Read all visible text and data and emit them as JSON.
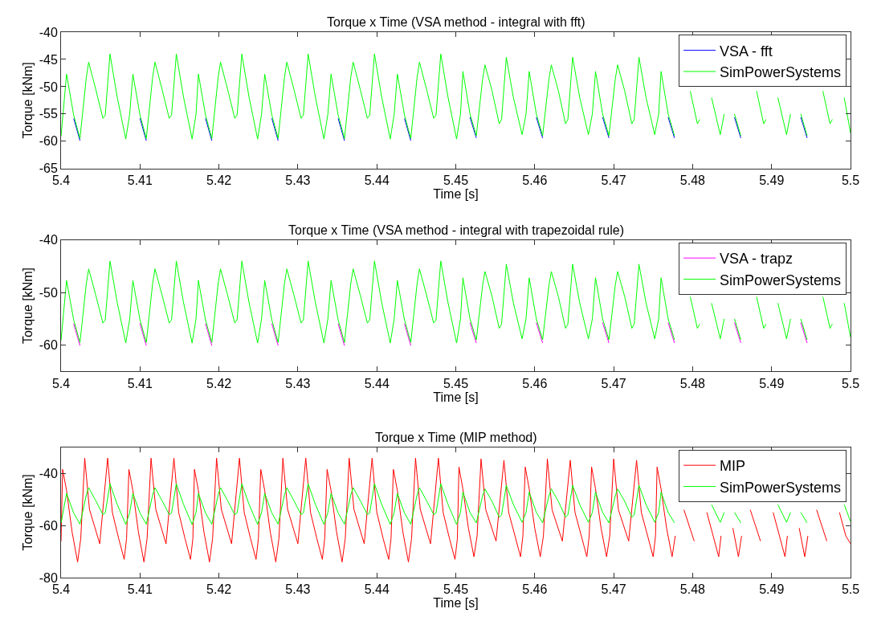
{
  "chart_data": [
    {
      "type": "line",
      "title": "Torque x Time (VSA method - integral with fft)",
      "xlabel": "Time [s]",
      "ylabel": "Torque [kNm]",
      "x": [
        5.4,
        5.4007,
        5.4016,
        5.4024,
        5.4032,
        5.4035,
        5.4044,
        5.4053,
        5.4056,
        5.4062,
        5.4071,
        5.4082,
        5.4087,
        5.4091,
        5.41,
        5.4108,
        5.4116,
        5.4119,
        5.4128,
        5.4137,
        5.414,
        5.4146,
        5.4155,
        5.4166,
        5.4171,
        5.4174,
        5.4183,
        5.4191,
        5.4199,
        5.4202,
        5.4211,
        5.422,
        5.4223,
        5.4229,
        5.4238,
        5.4249,
        5.4254,
        5.4258,
        5.4267,
        5.4275,
        5.4283,
        5.4286,
        5.4295,
        5.4304,
        5.4307,
        5.4313,
        5.4322,
        5.4333,
        5.4338,
        5.4342,
        5.4351,
        5.4359,
        5.4367,
        5.437,
        5.4379,
        5.4388,
        5.4391,
        5.4397,
        5.4406,
        5.4417,
        5.4422,
        5.4426,
        5.4435,
        5.4443,
        5.4451,
        5.4454,
        5.4463,
        5.4472,
        5.4475,
        5.4481,
        5.449,
        5.4501,
        5.4506,
        5.4509,
        5.4518,
        5.4526,
        5.4534,
        5.4537,
        5.4546,
        5.4555,
        5.4558,
        5.4564,
        5.4573,
        5.4584,
        5.4589,
        5.4593,
        5.4602,
        5.461,
        5.4618,
        5.4621,
        5.463,
        5.4639,
        5.4642,
        5.4648,
        5.4657,
        5.4668,
        5.4673,
        5.4677,
        5.4686,
        5.4694,
        5.4702,
        5.4705,
        5.4714,
        5.4723,
        5.4726,
        5.4732,
        5.4741,
        5.4752,
        5.4757,
        5.476,
        5.4769,
        5.4777,
        5.4785,
        5.4788,
        5.4797,
        5.4806,
        5.4809,
        5.4815,
        5.4824,
        5.4835,
        5.484,
        5.4844,
        5.4853,
        5.4861,
        5.4869,
        5.4872,
        5.4881,
        5.489,
        5.4893,
        5.4899,
        5.4908,
        5.4919,
        5.4924,
        5.4928,
        5.4937,
        5.4945,
        5.4953,
        5.4956,
        5.4965,
        5.4974,
        5.4977,
        5.4983,
        5.4992,
        5.5
      ],
      "series": [
        {
          "name": "VSA - fft",
          "color": "#0000ff",
          "values": [
            null,
            null,
            -55.8,
            -59.9,
            null,
            null,
            null,
            null,
            null,
            null,
            null,
            null,
            null,
            null,
            -55.8,
            -59.9,
            null,
            null,
            null,
            null,
            null,
            null,
            null,
            null,
            null,
            null,
            -55.8,
            -59.9,
            null,
            null,
            null,
            null,
            null,
            null,
            null,
            null,
            null,
            null,
            -55.8,
            -59.9,
            null,
            null,
            null,
            null,
            null,
            null,
            null,
            null,
            null,
            null,
            -55.8,
            -59.9,
            null,
            null,
            null,
            null,
            null,
            null,
            null,
            null,
            null,
            null,
            -55.8,
            -59.9,
            null,
            null,
            null,
            null,
            null,
            null,
            null,
            null,
            null,
            null,
            -55.6,
            -59.4,
            null,
            null,
            null,
            null,
            null,
            null,
            null,
            null,
            null,
            null,
            -55.6,
            -59.4,
            null,
            null,
            null,
            null,
            null,
            null,
            null,
            null,
            null,
            null,
            -55.6,
            -59.4,
            null,
            null,
            null,
            null,
            null,
            null,
            null,
            null,
            null,
            null,
            -55.6,
            -59.4,
            null,
            null,
            null,
            null,
            null,
            null,
            null,
            null,
            null,
            null,
            -55.6,
            -59.4,
            null,
            null,
            null,
            null,
            null,
            null,
            null,
            null,
            null,
            null,
            -55.6,
            -59.4,
            null,
            null,
            null,
            null,
            null,
            null,
            null,
            null
          ]
        },
        {
          "name": "SimPowerSystems",
          "color": "#00ff00",
          "values": [
            -59.1,
            -47.7,
            -55.2,
            -59.5,
            -48.3,
            -45.5,
            -50.5,
            -55.8,
            -55.2,
            -44.0,
            -51.8,
            -59.6,
            -55.0,
            -47.7,
            -55.2,
            -59.5,
            -48.3,
            -45.5,
            -50.5,
            -55.8,
            -55.2,
            -44.0,
            -51.8,
            -59.6,
            -55.0,
            -47.7,
            -55.2,
            -59.5,
            -48.3,
            -45.5,
            -50.5,
            -55.8,
            -55.2,
            -44.0,
            -51.8,
            -59.6,
            -55.0,
            -47.7,
            -55.2,
            -59.5,
            -48.3,
            -45.5,
            -50.5,
            -55.8,
            -55.2,
            -44.0,
            -51.8,
            -59.6,
            -55.0,
            -47.7,
            -55.2,
            -59.5,
            -48.3,
            -45.5,
            -50.5,
            -55.8,
            -55.2,
            -44.0,
            -51.8,
            -59.6,
            -55.0,
            -47.7,
            -55.2,
            -59.5,
            -48.3,
            -45.5,
            -50.5,
            -55.8,
            -55.2,
            -44.0,
            -51.8,
            -59.6,
            -55.0,
            -47.2,
            -55.0,
            -59.0,
            -48.6,
            -46.0,
            -50.8,
            -56.8,
            -56.0,
            -44.6,
            -52.0,
            -58.8,
            -55.0,
            -47.2,
            -55.0,
            -59.0,
            -48.6,
            -46.0,
            -50.8,
            -56.8,
            -56.0,
            -44.6,
            -52.0,
            -58.8,
            -55.0,
            -47.2,
            -55.0,
            -59.0,
            -48.6,
            -46.0,
            -50.8,
            -56.8,
            -56.0,
            -44.6,
            -52.0,
            -58.8,
            -55.0,
            -47.2,
            -55.0,
            -59.0,
            null,
            null,
            -50.8,
            -56.8,
            -56.0,
            null,
            -52.0,
            -58.8,
            -55.0,
            null,
            -55.0,
            -59.0,
            null,
            null,
            -50.8,
            -56.8,
            -56.0,
            null,
            -52.0,
            -58.8,
            -55.0,
            null,
            -55.0,
            -59.0,
            null,
            null,
            -50.8,
            -56.8,
            -56.0,
            null,
            -52.0,
            -58.5
          ]
        }
      ],
      "xlim": [
        5.4,
        5.5
      ],
      "xticks": [
        5.4,
        5.41,
        5.42,
        5.43,
        5.44,
        5.45,
        5.46,
        5.47,
        5.48,
        5.49,
        5.5
      ],
      "ylim": [
        -65,
        -40
      ],
      "yticks": [
        -65,
        -60,
        -55,
        -50,
        -45,
        -40
      ],
      "legend": "top right",
      "line_style": "solid"
    },
    {
      "type": "line",
      "title": "Torque x Time (VSA method - integral with trapezoidal rule)",
      "xlabel": "Time [s]",
      "ylabel": "Torque [kNm]",
      "x": [
        5.4,
        5.4007,
        5.4016,
        5.4024,
        5.4032,
        5.4035,
        5.4044,
        5.4053,
        5.4056,
        5.4062,
        5.4071,
        5.4082,
        5.4087,
        5.4091,
        5.41,
        5.4108,
        5.4116,
        5.4119,
        5.4128,
        5.4137,
        5.414,
        5.4146,
        5.4155,
        5.4166,
        5.4171,
        5.4174,
        5.4183,
        5.4191,
        5.4199,
        5.4202,
        5.4211,
        5.422,
        5.4223,
        5.4229,
        5.4238,
        5.4249,
        5.4254,
        5.4258,
        5.4267,
        5.4275,
        5.4283,
        5.4286,
        5.4295,
        5.4304,
        5.4307,
        5.4313,
        5.4322,
        5.4333,
        5.4338,
        5.4342,
        5.4351,
        5.4359,
        5.4367,
        5.437,
        5.4379,
        5.4388,
        5.4391,
        5.4397,
        5.4406,
        5.4417,
        5.4422,
        5.4426,
        5.4435,
        5.4443,
        5.4451,
        5.4454,
        5.4463,
        5.4472,
        5.4475,
        5.4481,
        5.449,
        5.4501,
        5.4506,
        5.4509,
        5.4518,
        5.4526,
        5.4534,
        5.4537,
        5.4546,
        5.4555,
        5.4558,
        5.4564,
        5.4573,
        5.4584,
        5.4589,
        5.4593,
        5.4602,
        5.461,
        5.4618,
        5.4621,
        5.463,
        5.4639,
        5.4642,
        5.4648,
        5.4657,
        5.4668,
        5.4673,
        5.4677,
        5.4686,
        5.4694,
        5.4702,
        5.4705,
        5.4714,
        5.4723,
        5.4726,
        5.4732,
        5.4741,
        5.4752,
        5.4757,
        5.476,
        5.4769,
        5.4777,
        5.4785,
        5.4788,
        5.4797,
        5.4806,
        5.4809,
        5.4815,
        5.4824,
        5.4835,
        5.484,
        5.4844,
        5.4853,
        5.4861,
        5.4869,
        5.4872,
        5.4881,
        5.489,
        5.4893,
        5.4899,
        5.4908,
        5.4919,
        5.4924,
        5.4928,
        5.4937,
        5.4945,
        5.4953,
        5.4956,
        5.4965,
        5.4974,
        5.4977,
        5.4983,
        5.4992,
        5.5
      ],
      "series": [
        {
          "name": "VSA - trapz",
          "color": "#ff00ff",
          "values": [
            null,
            null,
            -55.9,
            -60.1,
            null,
            null,
            null,
            null,
            null,
            null,
            null,
            null,
            null,
            null,
            -55.9,
            -60.1,
            null,
            null,
            null,
            null,
            null,
            null,
            null,
            null,
            null,
            null,
            -55.9,
            -60.1,
            null,
            null,
            null,
            null,
            null,
            null,
            null,
            null,
            null,
            null,
            -55.9,
            -60.1,
            null,
            null,
            null,
            null,
            null,
            null,
            null,
            null,
            null,
            null,
            -55.9,
            -60.1,
            null,
            null,
            null,
            null,
            null,
            null,
            null,
            null,
            null,
            null,
            -55.9,
            -60.1,
            null,
            null,
            null,
            null,
            null,
            null,
            null,
            null,
            null,
            null,
            -55.7,
            -59.6,
            null,
            null,
            null,
            null,
            null,
            null,
            null,
            null,
            null,
            null,
            -55.7,
            -59.6,
            null,
            null,
            null,
            null,
            null,
            null,
            null,
            null,
            null,
            null,
            -55.7,
            -59.6,
            null,
            null,
            null,
            null,
            null,
            null,
            null,
            null,
            null,
            null,
            -55.7,
            -59.6,
            null,
            null,
            null,
            null,
            null,
            null,
            null,
            null,
            null,
            null,
            -55.7,
            -59.6,
            null,
            null,
            null,
            null,
            null,
            null,
            null,
            null,
            null,
            null,
            -55.7,
            -59.6,
            null,
            null,
            null,
            null,
            null,
            null,
            null,
            null
          ]
        },
        {
          "name": "SimPowerSystems",
          "color": "#00ff00",
          "values": [
            -59.1,
            -47.7,
            -55.2,
            -59.5,
            -48.3,
            -45.5,
            -50.5,
            -55.8,
            -55.2,
            -44.0,
            -51.8,
            -59.6,
            -55.0,
            -47.7,
            -55.2,
            -59.5,
            -48.3,
            -45.5,
            -50.5,
            -55.8,
            -55.2,
            -44.0,
            -51.8,
            -59.6,
            -55.0,
            -47.7,
            -55.2,
            -59.5,
            -48.3,
            -45.5,
            -50.5,
            -55.8,
            -55.2,
            -44.0,
            -51.8,
            -59.6,
            -55.0,
            -47.7,
            -55.2,
            -59.5,
            -48.3,
            -45.5,
            -50.5,
            -55.8,
            -55.2,
            -44.0,
            -51.8,
            -59.6,
            -55.0,
            -47.7,
            -55.2,
            -59.5,
            -48.3,
            -45.5,
            -50.5,
            -55.8,
            -55.2,
            -44.0,
            -51.8,
            -59.6,
            -55.0,
            -47.7,
            -55.2,
            -59.5,
            -48.3,
            -45.5,
            -50.5,
            -55.8,
            -55.2,
            -44.0,
            -51.8,
            -59.6,
            -55.0,
            -47.2,
            -55.0,
            -59.0,
            -48.6,
            -46.0,
            -50.8,
            -56.8,
            -56.0,
            -44.6,
            -52.0,
            -58.8,
            -55.0,
            -47.2,
            -55.0,
            -59.0,
            -48.6,
            -46.0,
            -50.8,
            -56.8,
            -56.0,
            -44.6,
            -52.0,
            -58.8,
            -55.0,
            -47.2,
            -55.0,
            -59.0,
            -48.6,
            -46.0,
            -50.8,
            -56.8,
            -56.0,
            -44.6,
            -52.0,
            -58.8,
            -55.0,
            -47.2,
            -55.0,
            -59.0,
            null,
            null,
            -50.8,
            -56.8,
            -56.0,
            null,
            -52.0,
            -58.8,
            -55.0,
            null,
            -55.0,
            -59.0,
            null,
            null,
            -50.8,
            -56.8,
            -56.0,
            null,
            -52.0,
            -58.8,
            -55.0,
            null,
            -55.0,
            -59.0,
            null,
            null,
            -50.8,
            -56.8,
            -56.0,
            null,
            -52.0,
            -58.5
          ]
        }
      ],
      "xlim": [
        5.4,
        5.5
      ],
      "xticks": [
        5.4,
        5.41,
        5.42,
        5.43,
        5.44,
        5.45,
        5.46,
        5.47,
        5.48,
        5.49,
        5.5
      ],
      "ylim": [
        -65,
        -40
      ],
      "yticks": [
        -60,
        -50,
        -40
      ],
      "legend": "top right",
      "line_style": "solid"
    },
    {
      "type": "line",
      "title": "Torque x Time (MIP method)",
      "xlabel": "Time [s]",
      "ylabel": "Torque [kNm]",
      "x": [
        5.4,
        5.4007,
        5.4016,
        5.4024,
        5.4032,
        5.4035,
        5.4044,
        5.4053,
        5.4056,
        5.4062,
        5.4071,
        5.4082,
        5.4087,
        5.4091,
        5.41,
        5.4108,
        5.4116,
        5.4119,
        5.4128,
        5.4137,
        5.414,
        5.4146,
        5.4155,
        5.4166,
        5.4171,
        5.4174,
        5.4183,
        5.4191,
        5.4199,
        5.4202,
        5.4211,
        5.422,
        5.4223,
        5.4229,
        5.4238,
        5.4249,
        5.4254,
        5.4258,
        5.4267,
        5.4275,
        5.4283,
        5.4286,
        5.4295,
        5.4304,
        5.4307,
        5.4313,
        5.4322,
        5.4333,
        5.4338,
        5.4342,
        5.4351,
        5.4359,
        5.4367,
        5.437,
        5.4379,
        5.4388,
        5.4391,
        5.4397,
        5.4406,
        5.4417,
        5.4422,
        5.4426,
        5.4435,
        5.4443,
        5.4451,
        5.4454,
        5.4463,
        5.4472,
        5.4475,
        5.4481,
        5.449,
        5.4501,
        5.4506,
        5.4509,
        5.4518,
        5.4526,
        5.4534,
        5.4537,
        5.4546,
        5.4555,
        5.4558,
        5.4564,
        5.4573,
        5.4584,
        5.4589,
        5.4593,
        5.4602,
        5.461,
        5.4618,
        5.4621,
        5.463,
        5.4639,
        5.4642,
        5.4648,
        5.4657,
        5.4668,
        5.4673,
        5.4677,
        5.4686,
        5.4694,
        5.4702,
        5.4705,
        5.4714,
        5.4723,
        5.4726,
        5.4732,
        5.4741,
        5.4752,
        5.4757,
        5.476,
        5.4769,
        5.4777,
        5.4785,
        5.4788,
        5.4797,
        5.4806,
        5.4809,
        5.4815,
        5.4824,
        5.4835,
        5.484,
        5.4844,
        5.4853,
        5.4861,
        5.4869,
        5.4872,
        5.4881,
        5.489,
        5.4893,
        5.4899,
        5.4908,
        5.4919,
        5.4924,
        5.4928,
        5.4937,
        5.4945,
        5.4953,
        5.4956,
        5.4965,
        5.4974,
        5.4977,
        5.4983,
        5.4992,
        5.5
      ],
      "series": [
        {
          "name": "MIP",
          "color": "#ff0000",
          "x": [
            5.4,
            5.4002,
            5.4007,
            5.4014,
            5.4021,
            5.4025,
            5.403,
            5.4036,
            5.4049,
            5.4059,
            5.4065,
            5.4073,
            5.408,
            5.4083,
            5.4086,
            5.4091,
            5.4098,
            5.4105,
            5.4109,
            5.4114,
            5.412,
            5.4133,
            5.4143,
            5.4149,
            5.4157,
            5.4164,
            5.4167,
            5.4169,
            5.4174,
            5.4181,
            5.4188,
            5.4192,
            5.4197,
            5.4203,
            5.4216,
            5.4226,
            5.4232,
            5.424,
            5.4247,
            5.425,
            5.4253,
            5.4258,
            5.4265,
            5.4272,
            5.4276,
            5.4281,
            5.4287,
            5.43,
            5.431,
            5.4316,
            5.4324,
            5.4331,
            5.4334,
            5.4337,
            5.4342,
            5.4349,
            5.4356,
            5.436,
            5.4365,
            5.4371,
            5.4384,
            5.4394,
            5.44,
            5.4408,
            5.4415,
            5.4418,
            5.4421,
            5.4426,
            5.4433,
            5.444,
            5.4444,
            5.4449,
            5.4455,
            5.4468,
            5.4478,
            5.4484,
            5.4492,
            5.4499,
            5.4502,
            5.4504,
            5.4509,
            5.4516,
            5.4523,
            5.4527,
            5.4532,
            5.4538,
            5.4551,
            5.4561,
            5.4567,
            5.4575,
            5.4582,
            5.4585,
            5.4588,
            5.4593,
            5.46,
            5.4607,
            5.4611,
            5.4616,
            5.4622,
            5.4635,
            5.4645,
            5.4651,
            5.4659,
            5.4666,
            5.4669,
            5.4672,
            5.4677,
            5.4684,
            5.4691,
            5.4695,
            5.47,
            5.4706,
            5.4719,
            5.4729,
            5.4735,
            5.4743,
            5.475,
            5.4753,
            5.4755,
            5.476,
            5.4767,
            5.4774,
            5.4778,
            5.4783,
            5.4789,
            5.4802,
            5.4812,
            5.4818,
            5.4826,
            5.4833,
            5.4836,
            5.4839,
            5.4844,
            5.4851,
            5.4858,
            5.4862,
            5.4867,
            5.4873,
            5.4886,
            5.4896,
            5.4902,
            5.491,
            5.4917,
            5.492,
            5.4923,
            5.4928,
            5.4935,
            5.4942,
            5.4946,
            5.4951,
            5.4957,
            5.497,
            5.498,
            5.4986,
            5.4994,
            5.5
          ],
          "values": [
            -66,
            -38.5,
            -46.6,
            -62.5,
            -74,
            -65,
            -34.2,
            -53.8,
            -67,
            -34.2,
            -55,
            -65,
            -73,
            -65,
            -38.5,
            -46.6,
            -62.5,
            -74,
            -65,
            -34.2,
            -53.8,
            -67,
            -34.2,
            -55,
            -65,
            -73,
            -65,
            -38.5,
            -46.6,
            -62.5,
            -74,
            -65,
            -34.2,
            -53.8,
            -67,
            -34.2,
            -55,
            -65,
            -73,
            -65,
            -38.5,
            -46.6,
            -62.5,
            -74,
            -65,
            -34.2,
            -53.8,
            -67,
            -34.2,
            -55,
            -65,
            -73,
            -65,
            -38.5,
            -46.6,
            -62.5,
            -74,
            -65,
            -34.2,
            -53.8,
            -67,
            -34.2,
            -55,
            -65,
            -73,
            -65,
            -38.5,
            -46.6,
            -62.5,
            -74,
            -65,
            -34.2,
            -53.8,
            -67,
            -34.2,
            -55,
            -65,
            -73,
            -65,
            -37.6,
            -46,
            -61,
            -72,
            -64,
            -34.5,
            -54,
            -66,
            -35,
            -55,
            -64,
            -72,
            -64,
            -37.6,
            -46,
            -61,
            -72,
            -64,
            -34.5,
            -54,
            -66,
            -35,
            -55,
            -64,
            -72,
            -64,
            -37.6,
            -46,
            -61,
            -72,
            -64,
            -34.5,
            -54,
            -66,
            -35,
            -55,
            -64,
            -72,
            -64,
            -37.6,
            -46,
            -61,
            -72,
            -64,
            null,
            -54,
            -66,
            null,
            -55,
            -64,
            -72,
            -64,
            null,
            null,
            -61,
            -72,
            -64,
            null,
            -54,
            -66,
            null,
            -55,
            -64,
            -72,
            -64,
            null,
            null,
            -61,
            -72,
            -64,
            null,
            -54,
            -66,
            null,
            -55,
            -64,
            -67
          ]
        },
        {
          "name": "SimPowerSystems",
          "color": "#00ff00",
          "values": [
            -59.1,
            -47.7,
            -55.2,
            -59.5,
            -48.3,
            -45.5,
            -50.5,
            -55.8,
            -55.2,
            -44.0,
            -51.8,
            -59.6,
            -55.0,
            -47.7,
            -55.2,
            -59.5,
            -48.3,
            -45.5,
            -50.5,
            -55.8,
            -55.2,
            -44.0,
            -51.8,
            -59.6,
            -55.0,
            -47.7,
            -55.2,
            -59.5,
            -48.3,
            -45.5,
            -50.5,
            -55.8,
            -55.2,
            -44.0,
            -51.8,
            -59.6,
            -55.0,
            -47.7,
            -55.2,
            -59.5,
            -48.3,
            -45.5,
            -50.5,
            -55.8,
            -55.2,
            -44.0,
            -51.8,
            -59.6,
            -55.0,
            -47.7,
            -55.2,
            -59.5,
            -48.3,
            -45.5,
            -50.5,
            -55.8,
            -55.2,
            -44.0,
            -51.8,
            -59.6,
            -55.0,
            -47.7,
            -55.2,
            -59.5,
            -48.3,
            -45.5,
            -50.5,
            -55.8,
            -55.2,
            -44.0,
            -51.8,
            -59.6,
            -55.0,
            -47.2,
            -55.0,
            -59.0,
            -48.6,
            -46.0,
            -50.8,
            -56.8,
            -56.0,
            -44.6,
            -52.0,
            -58.8,
            -55.0,
            -47.2,
            -55.0,
            -59.0,
            -48.6,
            -46.0,
            -50.8,
            -56.8,
            -56.0,
            -44.6,
            -52.0,
            -58.8,
            -55.0,
            -47.2,
            -55.0,
            -59.0,
            -48.6,
            -46.0,
            -50.8,
            -56.8,
            -56.0,
            -44.6,
            -52.0,
            -58.8,
            -55.0,
            -47.2,
            -55.0,
            -59.0,
            null,
            null,
            null,
            null,
            null,
            null,
            -52.0,
            -58.8,
            -55.0,
            null,
            -55.0,
            -59.0,
            null,
            null,
            null,
            null,
            null,
            null,
            -52.0,
            -58.8,
            -55.0,
            null,
            -55.0,
            -59.0,
            null,
            null,
            null,
            null,
            null,
            null,
            -52.0,
            -58.5
          ]
        }
      ],
      "xlim": [
        5.4,
        5.5
      ],
      "xticks": [
        5.4,
        5.41,
        5.42,
        5.43,
        5.44,
        5.45,
        5.46,
        5.47,
        5.48,
        5.49,
        5.5
      ],
      "ylim": [
        -80,
        -30
      ],
      "yticks": [
        -80,
        -60,
        -40
      ],
      "legend": "top right",
      "line_style": "solid"
    }
  ]
}
